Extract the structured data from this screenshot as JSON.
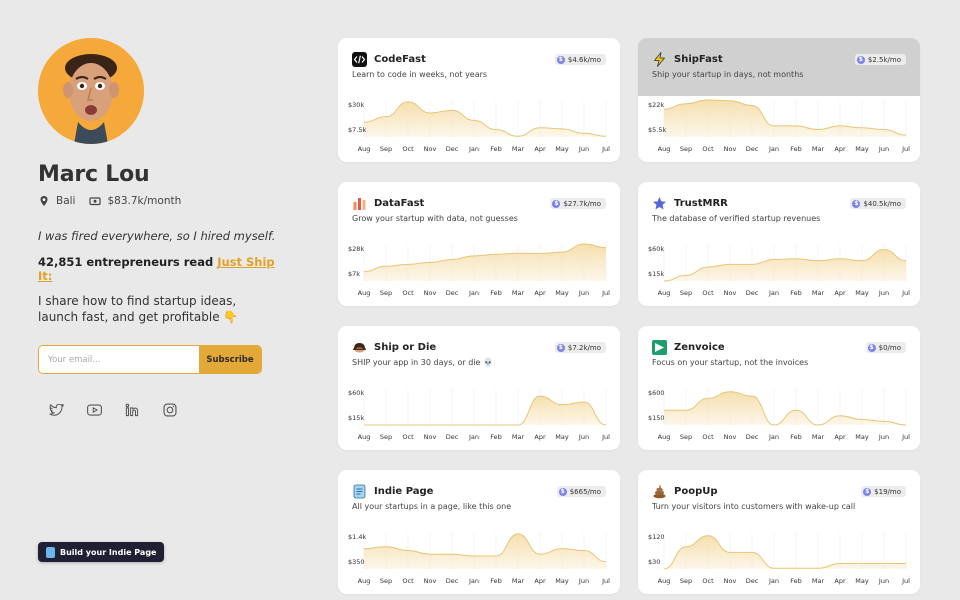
{
  "profile": {
    "name": "Marc Lou",
    "location": "Bali",
    "revenue": "$83.7k/month",
    "quote": "I was fired everywhere, so I hired myself.",
    "readers_prefix": "42,851 entrepreneurs read ",
    "readers_link": "Just Ship It:",
    "share": "I share how to find startup ideas, launch fast, and get profitable 👇",
    "email_placeholder": "Your email...",
    "subscribe_label": "Subscribe",
    "socials": [
      "twitter-icon",
      "youtube-icon",
      "linkedin-icon",
      "instagram-icon"
    ],
    "build_button": "Build your Indie Page"
  },
  "colors": {
    "accent": "#e3a838",
    "chart_fill": "#f6dfae",
    "chart_line": "#e8c579",
    "badge_dollar": "#7b83e8",
    "build_button_bg": "#1f2033"
  },
  "cards": [
    {
      "title": "CodeFast",
      "desc": "Learn to code in weeks, not years",
      "mrr": "$4.6k/mo",
      "icon": "code-icon",
      "active": false,
      "y_ticks": [
        "$30k",
        "$7.5k"
      ],
      "values": [
        0.4,
        0.55,
        0.95,
        0.65,
        0.72,
        0.45,
        0.2,
        0.02,
        0.25,
        0.22,
        0.1,
        0.02
      ]
    },
    {
      "title": "ShipFast",
      "desc": "Ship your startup in days, not months",
      "mrr": "$2.5k/mo",
      "icon": "lightning-icon",
      "active": true,
      "y_ticks": [
        "$22k",
        "$5.5k"
      ],
      "values": [
        0.75,
        0.9,
        1.0,
        0.98,
        0.85,
        0.3,
        0.3,
        0.2,
        0.3,
        0.25,
        0.2,
        0.05
      ]
    },
    {
      "title": "DataFast",
      "desc": "Grow your startup with data, not guesses",
      "mrr": "$27.7k/mo",
      "icon": "bar-chart-icon",
      "active": false,
      "y_ticks": [
        "$28k",
        "$7k"
      ],
      "values": [
        0.25,
        0.4,
        0.45,
        0.5,
        0.58,
        0.68,
        0.72,
        0.75,
        0.74,
        0.78,
        1.0,
        0.9
      ]
    },
    {
      "title": "TrustMRR",
      "desc": "The database of verified startup revenues",
      "mrr": "$40.5k/mo",
      "icon": "star-icon",
      "active": false,
      "y_ticks": [
        "$60k",
        "$15k"
      ],
      "values": [
        0.0,
        0.15,
        0.38,
        0.45,
        0.45,
        0.58,
        0.6,
        0.55,
        0.6,
        0.55,
        0.85,
        0.55
      ]
    },
    {
      "title": "Ship or Die",
      "desc": "SHIP your app in 30 days, or die 💀",
      "mrr": "$7.2k/mo",
      "icon": "skull-icon",
      "active": false,
      "y_ticks": [
        "$60k",
        "$15k"
      ],
      "values": [
        0.0,
        0.0,
        0.0,
        0.0,
        0.0,
        0.0,
        0.0,
        0.0,
        0.78,
        0.55,
        0.62,
        0.0
      ]
    },
    {
      "title": "Zenvoice",
      "desc": "Focus on your startup, not the invoices",
      "mrr": "$0/mo",
      "icon": "invoice-icon",
      "active": false,
      "y_ticks": [
        "$600",
        "$150"
      ],
      "values": [
        0.4,
        0.4,
        0.72,
        0.9,
        0.78,
        0.0,
        0.4,
        0.0,
        0.25,
        0.15,
        0.1,
        0.0
      ]
    },
    {
      "title": "Indie Page",
      "desc": "All your startups in a page, like this one",
      "mrr": "$665/mo",
      "icon": "page-icon",
      "active": false,
      "y_ticks": [
        "$1.4k",
        "$350"
      ],
      "values": [
        0.55,
        0.6,
        0.5,
        0.4,
        0.4,
        0.35,
        0.35,
        0.95,
        0.4,
        0.55,
        0.5,
        0.2
      ]
    },
    {
      "title": "PoopUp",
      "desc": "Turn your visitors into customers with wake-up call",
      "mrr": "$19/mo",
      "icon": "poop-icon",
      "active": false,
      "y_ticks": [
        "$120",
        "$30"
      ],
      "values": [
        0.0,
        0.6,
        0.9,
        0.45,
        0.45,
        0.02,
        0.02,
        0.02,
        0.15,
        0.15,
        0.15,
        0.15
      ]
    }
  ],
  "months": [
    "Aug",
    "Sep",
    "Oct",
    "Nov",
    "Dec",
    "Jan",
    "Feb",
    "Mar",
    "Apr",
    "May",
    "Jun",
    "Jul"
  ]
}
